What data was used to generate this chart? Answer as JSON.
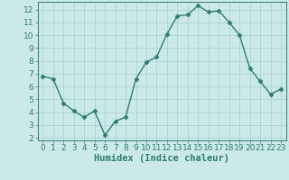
{
  "x": [
    0,
    1,
    2,
    3,
    4,
    5,
    6,
    7,
    8,
    9,
    10,
    11,
    12,
    13,
    14,
    15,
    16,
    17,
    18,
    19,
    20,
    21,
    22,
    23
  ],
  "y": [
    6.8,
    6.6,
    4.7,
    4.1,
    3.6,
    4.1,
    2.2,
    3.3,
    3.6,
    6.6,
    7.9,
    8.3,
    10.1,
    11.5,
    11.6,
    12.3,
    11.8,
    11.9,
    11.0,
    10.0,
    7.4,
    6.4,
    5.4,
    5.8
  ],
  "line_color": "#2e7d6e",
  "marker": "D",
  "marker_size": 2.5,
  "line_width": 1.0,
  "bg_color": "#cce9e9",
  "grid_color": "#aad4d4",
  "xlabel": "Humidex (Indice chaleur)",
  "xlabel_fontsize": 7.5,
  "tick_fontsize": 6.5,
  "xlim": [
    -0.5,
    23.5
  ],
  "ylim": [
    1.8,
    12.6
  ],
  "yticks": [
    2,
    3,
    4,
    5,
    6,
    7,
    8,
    9,
    10,
    11,
    12
  ],
  "xticks": [
    0,
    1,
    2,
    3,
    4,
    5,
    6,
    7,
    8,
    9,
    10,
    11,
    12,
    13,
    14,
    15,
    16,
    17,
    18,
    19,
    20,
    21,
    22,
    23
  ]
}
